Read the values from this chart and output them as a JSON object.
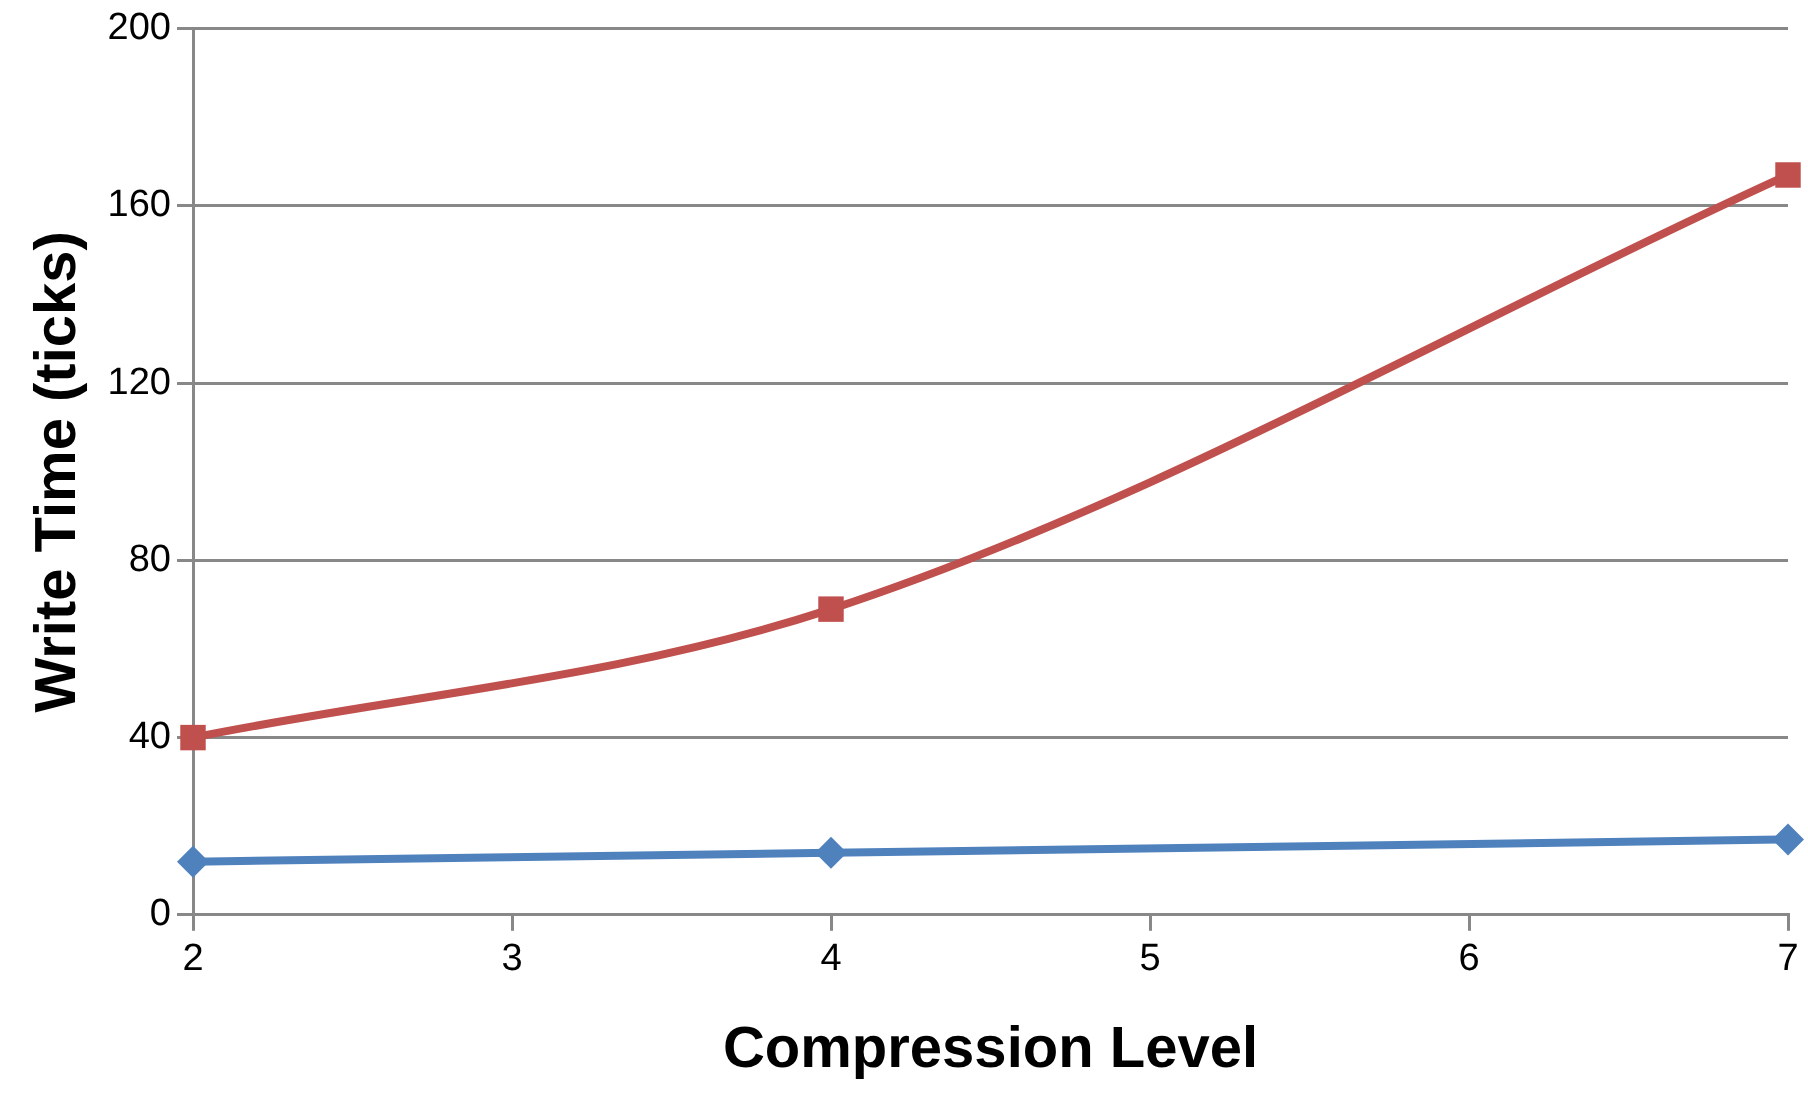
{
  "chart_data": {
    "type": "line",
    "xlabel": "Compression Level",
    "ylabel": "Write Time (ticks)",
    "x": [
      2,
      4,
      7
    ],
    "series": [
      {
        "color": "#4f81bd",
        "marker": "diamond",
        "values": [
          12,
          14,
          17
        ]
      },
      {
        "color": "#c0504d",
        "marker": "square",
        "values": [
          40,
          69,
          167
        ]
      }
    ],
    "xlim": [
      2,
      7
    ],
    "xticks": [
      2,
      3,
      4,
      5,
      6,
      7
    ],
    "ylim": [
      0,
      200
    ],
    "yticks": [
      0,
      40,
      80,
      120,
      160,
      200
    ],
    "grid": "y",
    "legend": false,
    "line_style": "solid"
  }
}
